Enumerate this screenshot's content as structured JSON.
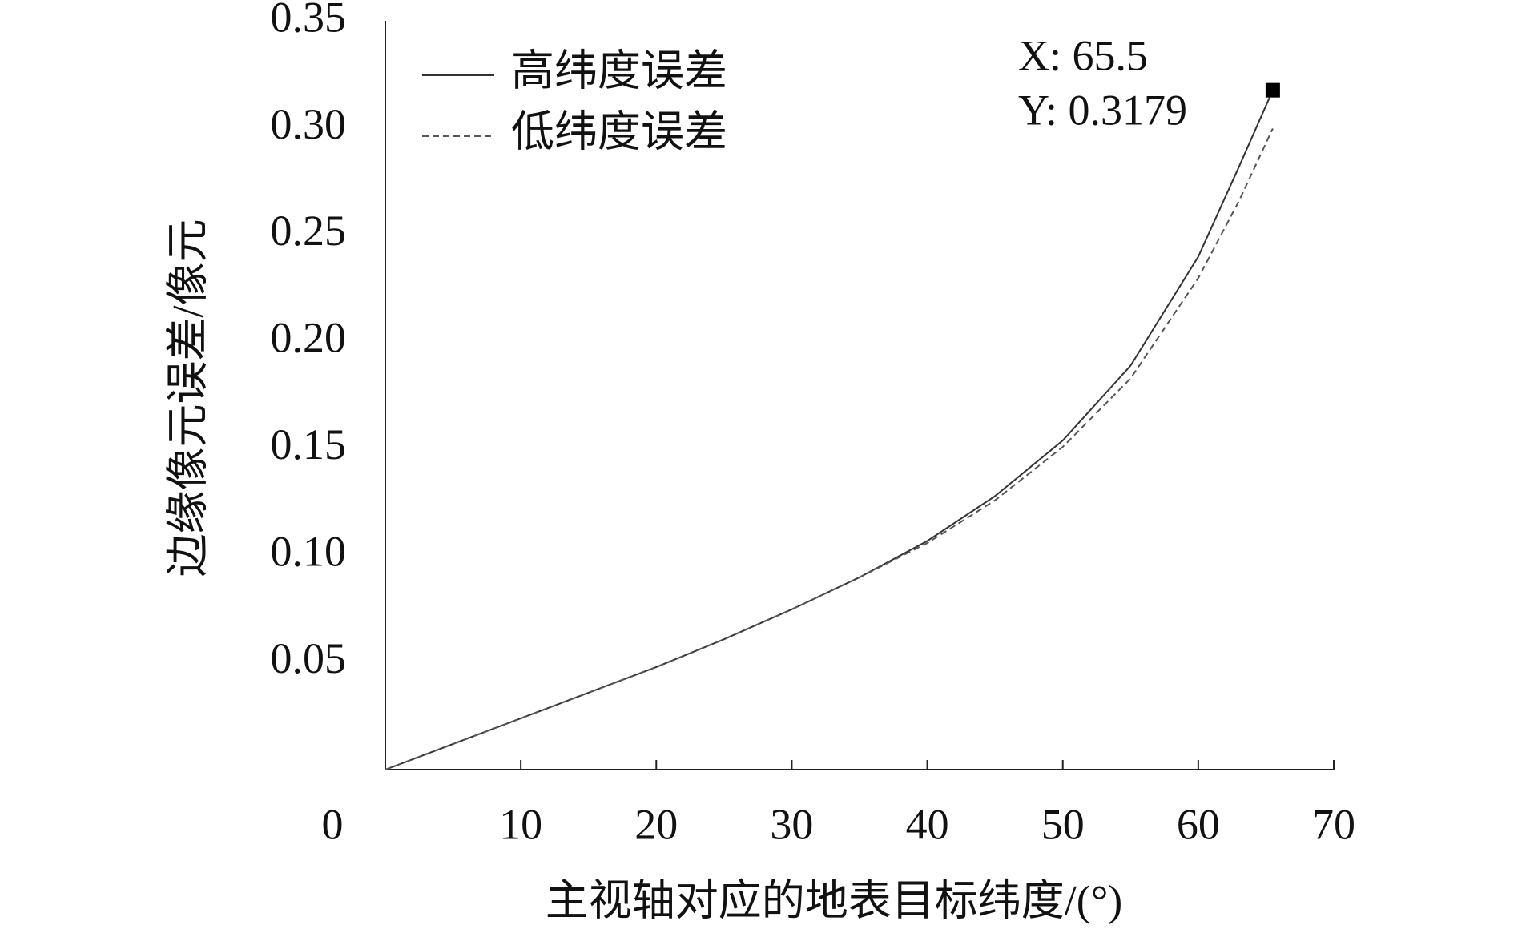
{
  "chart_data": {
    "type": "line",
    "x_label": "主视轴对应的地表目标纬度/(°)",
    "y_label": "边缘像元误差/像元",
    "x": [
      0,
      5,
      10,
      15,
      20,
      25,
      30,
      35,
      40,
      45,
      50,
      55,
      60,
      63,
      65.5
    ],
    "series": [
      {
        "name": "高纬度误差",
        "color": "#333333",
        "line_style": "solid",
        "values": [
          0,
          0.012,
          0.024,
          0.036,
          0.048,
          0.061,
          0.075,
          0.09,
          0.107,
          0.128,
          0.154,
          0.189,
          0.24,
          0.282,
          0.3179
        ]
      },
      {
        "name": "低纬度误差",
        "color": "#555555",
        "line_style": "dashed",
        "values": [
          0,
          0.012,
          0.024,
          0.036,
          0.048,
          0.061,
          0.075,
          0.09,
          0.106,
          0.126,
          0.151,
          0.183,
          0.23,
          0.266,
          0.3
        ]
      }
    ],
    "annotation": {
      "x": 65.5,
      "y": 0.3179,
      "x_label": "X: 65.5",
      "y_label": "Y: 0.3179"
    },
    "xlim": [
      0,
      70
    ],
    "xticks": [
      0,
      10,
      20,
      30,
      40,
      50,
      60,
      70
    ],
    "ylim": [
      0,
      0.35
    ],
    "yticks": [
      {
        "value": 0.05,
        "label": "0.05"
      },
      {
        "value": 0.1,
        "label": "0.10"
      },
      {
        "value": 0.15,
        "label": "0.15"
      },
      {
        "value": 0.2,
        "label": "0.20"
      },
      {
        "value": 0.25,
        "label": "0.25"
      },
      {
        "value": 0.3,
        "label": "0.30"
      },
      {
        "value": 0.35,
        "label": "0.35"
      }
    ],
    "legend": "upper left",
    "grid": false
  }
}
